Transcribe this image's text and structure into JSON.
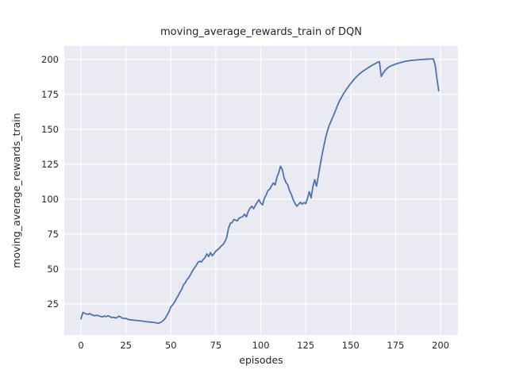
{
  "chart_data": {
    "type": "line",
    "title": "moving_average_rewards_train of DQN",
    "xlabel": "episodes",
    "ylabel": "moving_average_rewards_train",
    "xticks": [
      0,
      25,
      50,
      75,
      100,
      125,
      150,
      175,
      200
    ],
    "yticks": [
      25,
      50,
      75,
      100,
      125,
      150,
      175,
      200
    ],
    "xlim": [
      -9.3,
      209.7
    ],
    "ylim": [
      2.8,
      209.5
    ],
    "grid": true,
    "legend": "none",
    "style": "seaborn-darkgrid",
    "colors": {
      "line": "#4c72b0",
      "plot_background": "#eaeaf2",
      "gridline": "#ffffff",
      "text": "#262626",
      "figure_background": "#ffffff"
    },
    "series": [
      {
        "name": "moving_average_rewards_train",
        "points": [
          [
            0,
            14.3
          ],
          [
            1,
            18.9
          ],
          [
            2,
            18.4
          ],
          [
            3,
            17.8
          ],
          [
            4,
            17.6
          ],
          [
            5,
            18.1
          ],
          [
            6,
            17.2
          ],
          [
            7,
            16.8
          ],
          [
            8,
            16.6
          ],
          [
            9,
            16.9
          ],
          [
            10,
            16.4
          ],
          [
            11,
            16.0
          ],
          [
            12,
            15.7
          ],
          [
            13,
            16.4
          ],
          [
            14,
            15.9
          ],
          [
            15,
            16.5
          ],
          [
            16,
            16.0
          ],
          [
            17,
            15.2
          ],
          [
            18,
            15.5
          ],
          [
            19,
            15.0
          ],
          [
            20,
            15.2
          ],
          [
            21,
            16.2
          ],
          [
            22,
            15.7
          ],
          [
            23,
            14.9
          ],
          [
            24,
            14.5
          ],
          [
            25,
            14.7
          ],
          [
            26,
            14.0
          ],
          [
            27,
            13.7
          ],
          [
            28,
            13.6
          ],
          [
            29,
            13.4
          ],
          [
            30,
            13.3
          ],
          [
            31,
            13.1
          ],
          [
            32,
            13.1
          ],
          [
            33,
            12.9
          ],
          [
            34,
            12.8
          ],
          [
            35,
            12.6
          ],
          [
            36,
            12.3
          ],
          [
            37,
            12.2
          ],
          [
            38,
            12.1
          ],
          [
            39,
            12.0
          ],
          [
            40,
            11.9
          ],
          [
            41,
            11.7
          ],
          [
            42,
            11.4
          ],
          [
            43,
            11.2
          ],
          [
            44,
            11.6
          ],
          [
            45,
            12.4
          ],
          [
            46,
            13.4
          ],
          [
            47,
            15.0
          ],
          [
            48,
            17.3
          ],
          [
            49,
            19.6
          ],
          [
            50,
            23.0
          ],
          [
            51,
            24.4
          ],
          [
            52,
            26.2
          ],
          [
            53,
            28.6
          ],
          [
            54,
            30.8
          ],
          [
            55,
            33.3
          ],
          [
            56,
            35.4
          ],
          [
            57,
            38.6
          ],
          [
            58,
            40.2
          ],
          [
            59,
            42.5
          ],
          [
            60,
            43.9
          ],
          [
            61,
            46.2
          ],
          [
            62,
            48.6
          ],
          [
            63,
            50.6
          ],
          [
            64,
            52.4
          ],
          [
            65,
            54.6
          ],
          [
            66,
            55.6
          ],
          [
            67,
            55.0
          ],
          [
            68,
            56.8
          ],
          [
            69,
            58.2
          ],
          [
            70,
            60.8
          ],
          [
            71,
            58.9
          ],
          [
            72,
            61.8
          ],
          [
            73,
            59.4
          ],
          [
            74,
            61.0
          ],
          [
            75,
            62.8
          ],
          [
            76,
            63.8
          ],
          [
            77,
            65.0
          ],
          [
            78,
            66.5
          ],
          [
            79,
            67.5
          ],
          [
            80,
            69.5
          ],
          [
            81,
            72.3
          ],
          [
            82,
            78.8
          ],
          [
            83,
            82.6
          ],
          [
            84,
            83.2
          ],
          [
            85,
            85.4
          ],
          [
            86,
            84.9
          ],
          [
            87,
            84.5
          ],
          [
            88,
            86.4
          ],
          [
            89,
            87.0
          ],
          [
            90,
            87.5
          ],
          [
            91,
            89.2
          ],
          [
            92,
            87.3
          ],
          [
            93,
            91.1
          ],
          [
            94,
            93.5
          ],
          [
            95,
            94.9
          ],
          [
            96,
            93.1
          ],
          [
            97,
            95.5
          ],
          [
            98,
            97.7
          ],
          [
            99,
            99.6
          ],
          [
            100,
            97.0
          ],
          [
            101,
            95.9
          ],
          [
            102,
            100.6
          ],
          [
            103,
            103.0
          ],
          [
            104,
            106.2
          ],
          [
            105,
            107.2
          ],
          [
            106,
            109.5
          ],
          [
            107,
            111.5
          ],
          [
            108,
            110.2
          ],
          [
            109,
            115.7
          ],
          [
            110,
            119.0
          ],
          [
            111,
            123.5
          ],
          [
            112,
            121.0
          ],
          [
            113,
            115.0
          ],
          [
            114,
            111.9
          ],
          [
            115,
            110.2
          ],
          [
            116,
            106.0
          ],
          [
            117,
            103.4
          ],
          [
            118,
            99.7
          ],
          [
            119,
            97.0
          ],
          [
            120,
            94.9
          ],
          [
            121,
            96.2
          ],
          [
            122,
            97.7
          ],
          [
            123,
            96.4
          ],
          [
            124,
            97.5
          ],
          [
            125,
            96.8
          ],
          [
            126,
            100.6
          ],
          [
            127,
            105.3
          ],
          [
            128,
            100.8
          ],
          [
            129,
            109.0
          ],
          [
            130,
            113.9
          ],
          [
            131,
            109.2
          ],
          [
            132,
            116.5
          ],
          [
            133,
            124.0
          ],
          [
            134,
            131.0
          ],
          [
            135,
            137.5
          ],
          [
            136,
            143.5
          ],
          [
            137,
            148.5
          ],
          [
            138,
            152.5
          ],
          [
            139,
            155.5
          ],
          [
            140,
            158.5
          ],
          [
            141,
            161.5
          ],
          [
            142,
            164.8
          ],
          [
            143,
            168.0
          ],
          [
            144,
            170.8
          ],
          [
            145,
            173.0
          ],
          [
            146,
            175.3
          ],
          [
            147,
            177.3
          ],
          [
            148,
            179.2
          ],
          [
            149,
            181.0
          ],
          [
            150,
            182.7
          ],
          [
            151,
            184.3
          ],
          [
            152,
            185.8
          ],
          [
            153,
            187.2
          ],
          [
            154,
            188.5
          ],
          [
            155,
            189.7
          ],
          [
            156,
            190.7
          ],
          [
            157,
            191.6
          ],
          [
            158,
            192.5
          ],
          [
            159,
            193.4
          ],
          [
            160,
            194.2
          ],
          [
            161,
            195.0
          ],
          [
            162,
            195.8
          ],
          [
            163,
            196.5
          ],
          [
            164,
            197.2
          ],
          [
            165,
            197.8
          ],
          [
            166,
            198.3
          ],
          [
            167,
            187.7
          ],
          [
            168,
            190.0
          ],
          [
            169,
            191.8
          ],
          [
            170,
            193.2
          ],
          [
            171,
            194.3
          ],
          [
            172,
            195.0
          ],
          [
            173,
            195.6
          ],
          [
            174,
            196.1
          ],
          [
            175,
            196.6
          ],
          [
            176,
            197.0
          ],
          [
            177,
            197.4
          ],
          [
            178,
            197.8
          ],
          [
            179,
            198.1
          ],
          [
            180,
            198.4
          ],
          [
            181,
            198.7
          ],
          [
            182,
            198.9
          ],
          [
            183,
            199.1
          ],
          [
            184,
            199.3
          ],
          [
            185,
            199.4
          ],
          [
            186,
            199.5
          ],
          [
            187,
            199.6
          ],
          [
            188,
            199.7
          ],
          [
            189,
            199.8
          ],
          [
            190,
            199.9
          ],
          [
            191,
            200.0
          ],
          [
            192,
            200.1
          ],
          [
            193,
            200.1
          ],
          [
            194,
            200.2
          ],
          [
            195,
            200.2
          ],
          [
            196,
            200.3
          ],
          [
            197,
            196.0
          ],
          [
            198,
            186.0
          ],
          [
            199,
            177.5
          ]
        ]
      }
    ]
  }
}
